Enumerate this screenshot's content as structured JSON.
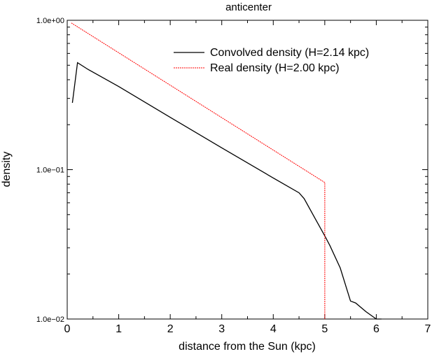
{
  "chart_data": {
    "type": "line",
    "title": "anticenter",
    "xlabel": "distance from the Sun (kpc)",
    "ylabel": "density",
    "xlim": [
      0,
      7
    ],
    "ylim": [
      0.01,
      1.0
    ],
    "yscale": "log",
    "xticks": [
      0,
      1,
      2,
      3,
      4,
      5,
      6,
      7
    ],
    "xtick_labels": [
      "0",
      "1",
      "2",
      "3",
      "4",
      "5",
      "6",
      "7"
    ],
    "yticks": [
      1.0,
      0.1,
      0.01
    ],
    "ytick_labels": [
      "1.0e+00",
      "1.0e−01",
      "1.0e−02"
    ],
    "grid": false,
    "legend_position": "top-right",
    "series": [
      {
        "name": "Convolved density (H=2.14 kpc)",
        "color": "#000000",
        "dash": "solid",
        "x": [
          0.1,
          0.2,
          0.4,
          1.0,
          2.0,
          3.0,
          4.0,
          4.5,
          4.6,
          4.8,
          5.0,
          5.1,
          5.3,
          5.5,
          5.6,
          5.8,
          6.0,
          6.1
        ],
        "y": [
          0.28,
          0.52,
          0.47,
          0.36,
          0.224,
          0.14,
          0.088,
          0.07,
          0.064,
          0.048,
          0.036,
          0.031,
          0.022,
          0.0132,
          0.0128,
          0.0112,
          0.01,
          0.0096
        ]
      },
      {
        "name": "Real density (H=2.00 kpc)",
        "color": "#ff0000",
        "dash": "dotted",
        "x": [
          0.08,
          5.0,
          5.0
        ],
        "y": [
          0.96,
          0.082,
          0.0095
        ]
      }
    ]
  }
}
